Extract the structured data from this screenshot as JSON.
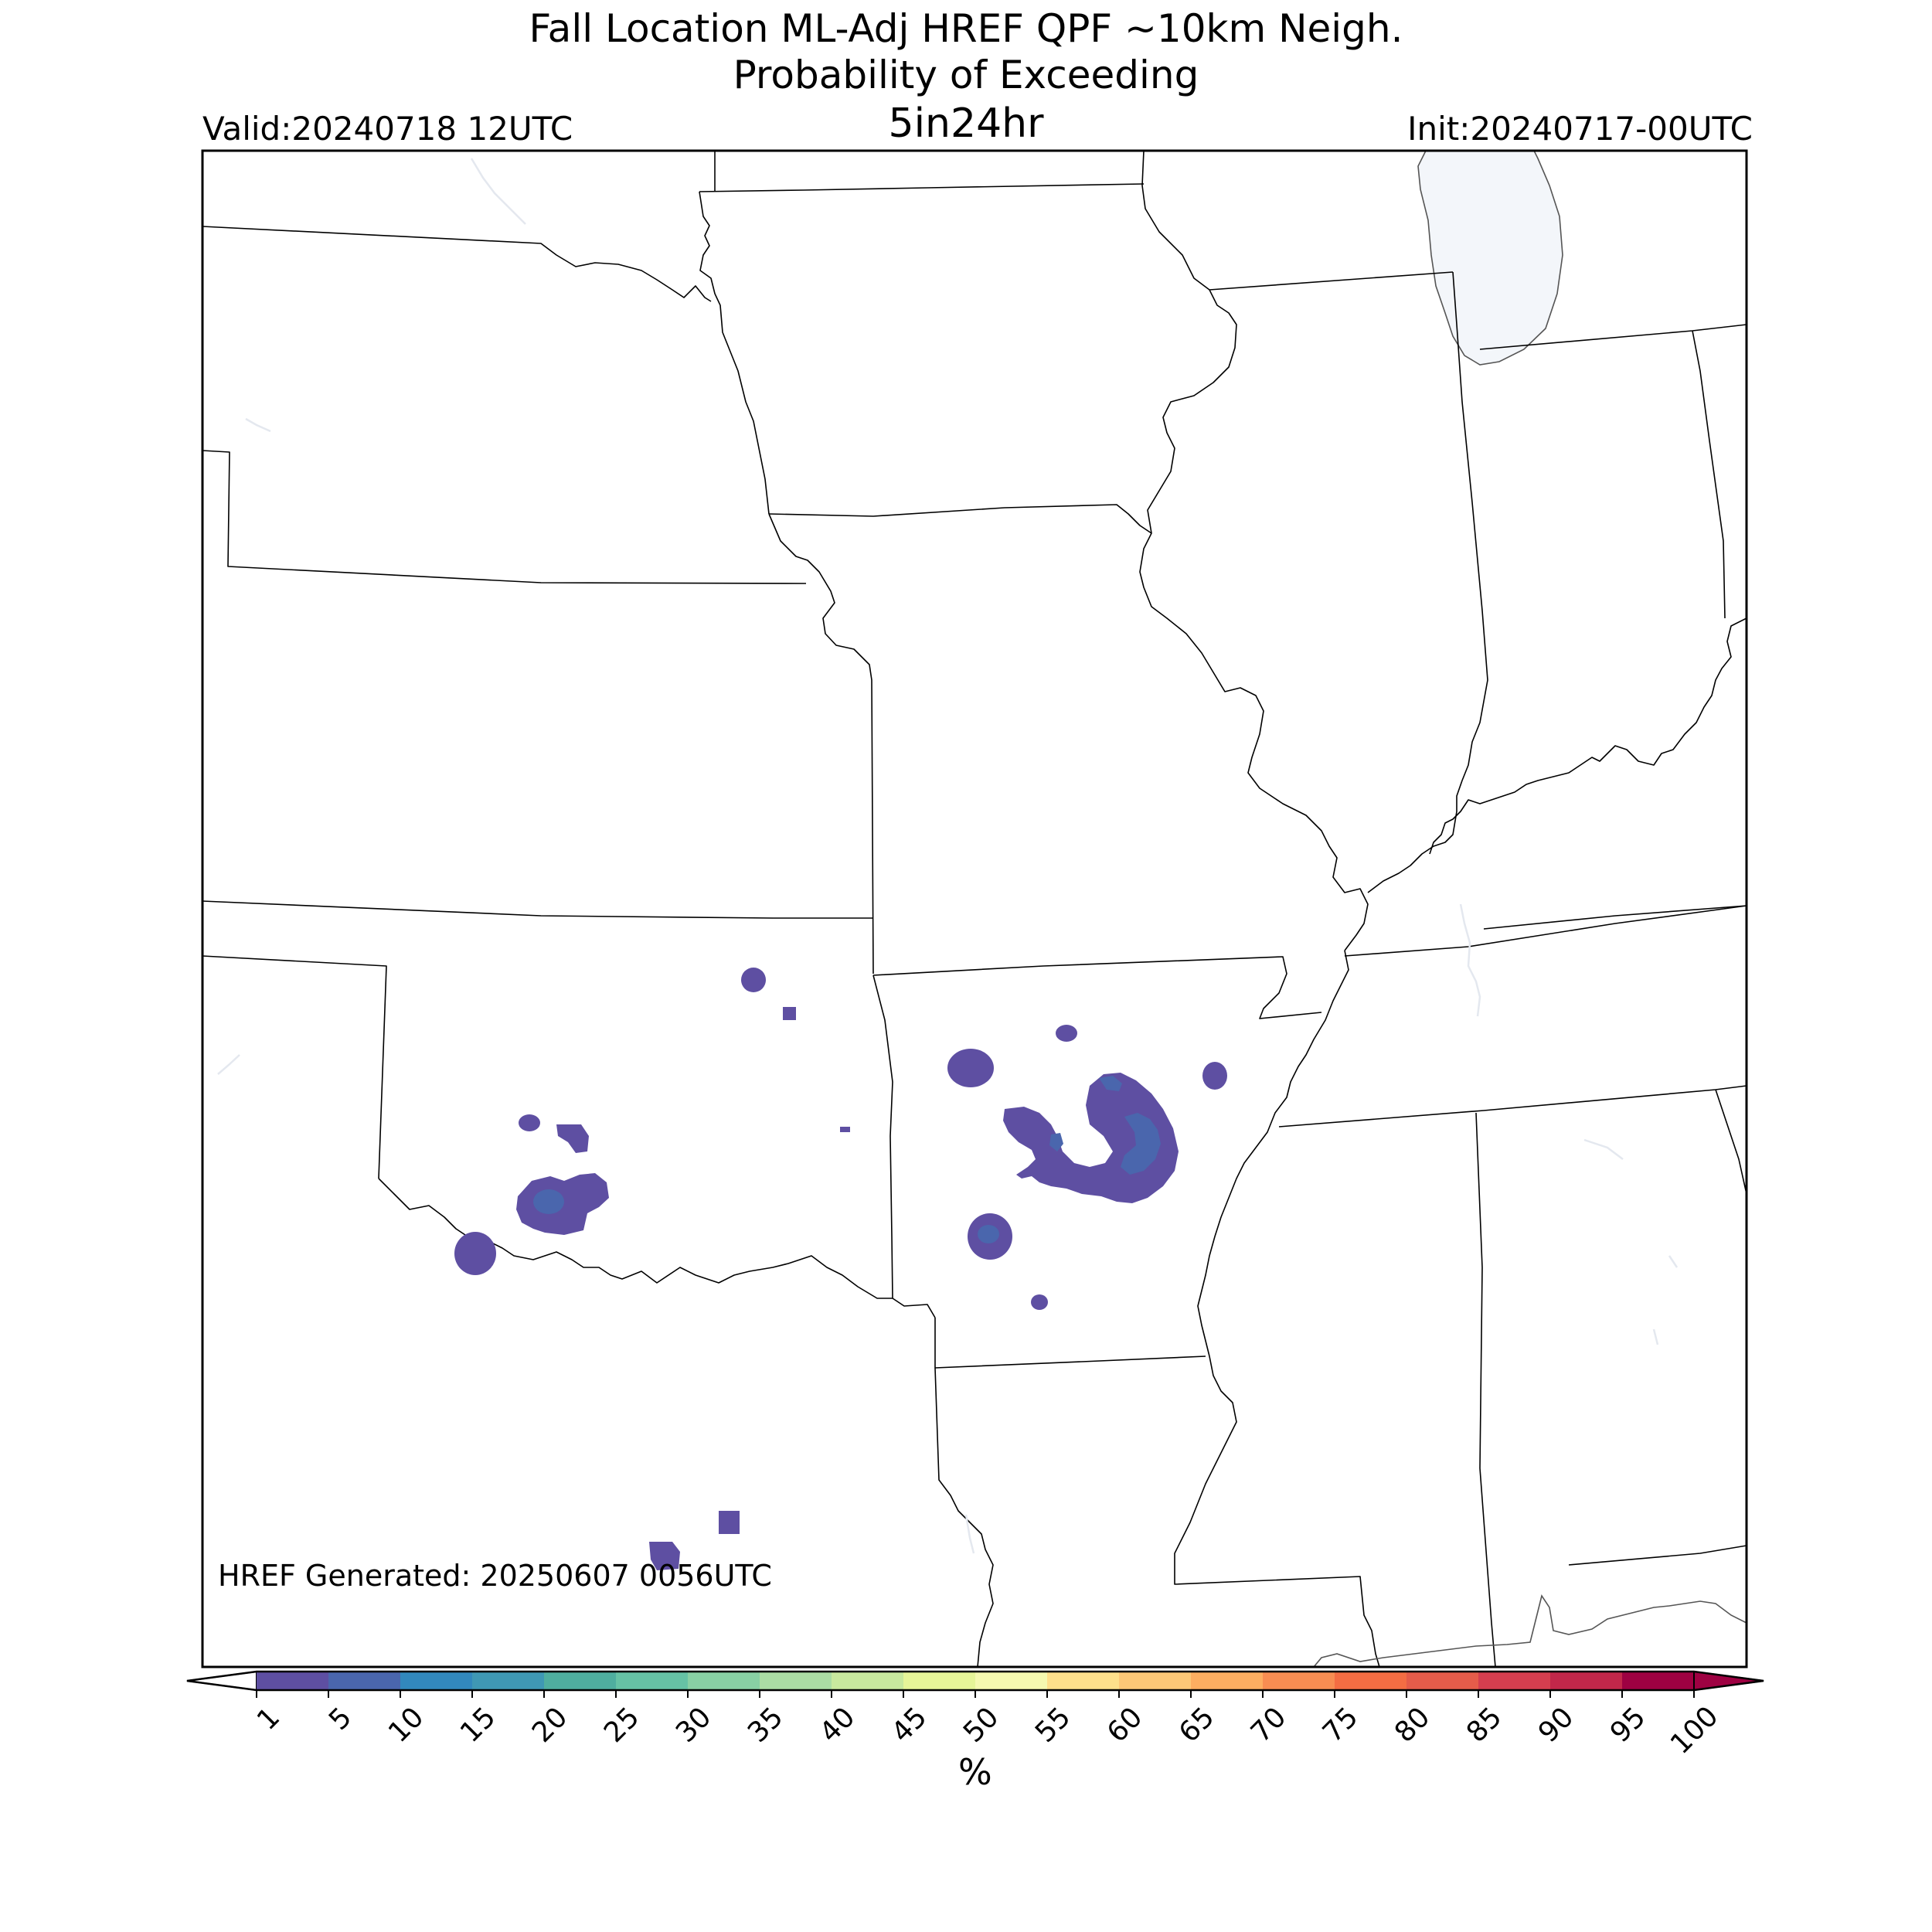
{
  "title": {
    "line1": "Fall Location ML-Adj HREF QPF ~10km Neigh.",
    "line2": "Probability of Exceeding",
    "line3": "5in24hr"
  },
  "valid": "Valid:20240718 12UTC",
  "init": "Init:20240717-00UTC",
  "generated": "HREF Generated: 20250607 0056UTC",
  "colorbar": {
    "unit": "%",
    "ticks": [
      "1",
      "5",
      "10",
      "15",
      "20",
      "25",
      "30",
      "35",
      "40",
      "45",
      "50",
      "55",
      "60",
      "65",
      "70",
      "75",
      "80",
      "85",
      "90",
      "95",
      "100"
    ],
    "colors": [
      "#5e4fa2",
      "#4a66ad",
      "#3288bd",
      "#3f98b4",
      "#4fae9f",
      "#66c2a5",
      "#88d0a4",
      "#abdda4",
      "#c8e99e",
      "#e6f598",
      "#f5f9b0",
      "#fee08b",
      "#fdc877",
      "#fdae61",
      "#f88d52",
      "#f46d43",
      "#e55c4a",
      "#d53e4f",
      "#c2274a",
      "#9e0142"
    ],
    "under_color": "#ffffff",
    "over_color": "#9e0142"
  },
  "colors": {
    "lake": "#f3f6fa",
    "border": "#000000",
    "coast": "#555555"
  }
}
